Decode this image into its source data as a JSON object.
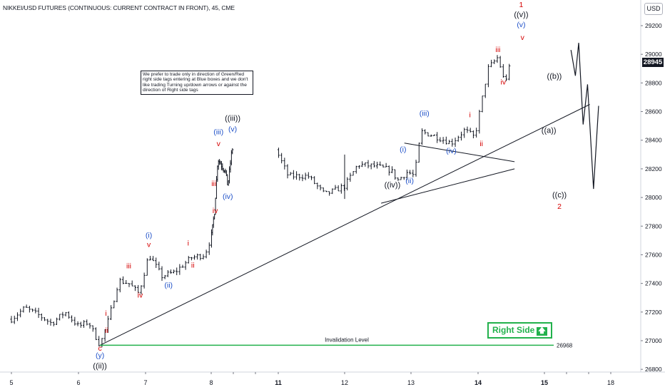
{
  "header": {
    "title": "NIKKEI/USD FUTURES (CONTINUOUS: CURRENT CONTRACT IN FRONT), 45, CME",
    "currency": "USD",
    "last_price": "28945"
  },
  "note": "We prefer to trade only in direction of Green/Red right side tags entering at Blue boxes and we don't like trading Turning up/down arrows or against the direction of Right side tags",
  "right_side": {
    "label": "Right Side",
    "arrow": "up-arrow-icon"
  },
  "chart_data": {
    "type": "candlestick",
    "title": "NIKKEI/USD FUTURES (CONTINUOUS: CURRENT CONTRACT IN FRONT), 45, CME",
    "x_ticks": [
      "5",
      "6",
      "7",
      "8",
      "9",
      "10",
      "11",
      "12",
      "13",
      "14",
      "15",
      "16",
      "17",
      "18"
    ],
    "x_tick_labels_shown": [
      "5",
      "6",
      "7",
      "8",
      "11",
      "12",
      "13",
      "14",
      "15",
      "18"
    ],
    "y_ticks": [
      26800,
      27000,
      27200,
      27400,
      27600,
      27800,
      28000,
      28200,
      28400,
      28600,
      28800,
      29000,
      29200
    ],
    "ylim": [
      26700,
      29380
    ],
    "price_path": [
      [
        5.0,
        27150
      ],
      [
        5.2,
        27230
      ],
      [
        5.4,
        27180
      ],
      [
        5.6,
        27120
      ],
      [
        5.8,
        27200
      ],
      [
        6.0,
        27100
      ],
      [
        6.15,
        27130
      ],
      [
        6.32,
        26968
      ],
      [
        6.45,
        27150
      ],
      [
        6.6,
        27420
      ],
      [
        6.75,
        27400
      ],
      [
        6.9,
        27330
      ],
      [
        7.05,
        27600
      ],
      [
        7.25,
        27450
      ],
      [
        7.45,
        27480
      ],
      [
        7.7,
        27580
      ],
      [
        7.9,
        27600
      ],
      [
        8.15,
        27900
      ],
      [
        8.3,
        28270
      ],
      [
        8.45,
        28230
      ],
      [
        8.65,
        28180
      ],
      [
        8.75,
        28080
      ],
      [
        8.95,
        28350
      ],
      [
        9.15,
        28150
      ],
      [
        9.45,
        28150
      ],
      [
        9.7,
        28020
      ],
      [
        10.0,
        28080
      ],
      [
        10.2,
        28230
      ],
      [
        10.45,
        28220
      ],
      [
        10.7,
        28190
      ],
      [
        10.8,
        28120
      ],
      [
        10.95,
        28180
      ],
      [
        11.05,
        28150
      ],
      [
        11.15,
        28460
      ],
      [
        11.35,
        28430
      ],
      [
        11.6,
        28380
      ],
      [
        11.8,
        28470
      ],
      [
        11.95,
        28420
      ],
      [
        12.15,
        28900
      ],
      [
        12.3,
        28980
      ],
      [
        12.4,
        28800
      ],
      [
        12.5,
        28945
      ]
    ],
    "series": [
      {
        "name": "",
        "kind": "trendline",
        "points": [
          [
            6.32,
            26968
          ],
          [
            15.05,
            28650
          ]
        ]
      },
      {
        "name": "",
        "kind": "triangle-upper",
        "points": [
          [
            10.9,
            28380
          ],
          [
            12.55,
            28250
          ]
        ]
      },
      {
        "name": "",
        "kind": "triangle-lower",
        "points": [
          [
            10.55,
            27960
          ],
          [
            12.55,
            28200
          ]
        ]
      },
      {
        "name": "",
        "kind": "projection",
        "points": [
          [
            14.2,
            29030
          ],
          [
            14.4,
            28850
          ],
          [
            14.55,
            29080
          ],
          [
            14.75,
            28510
          ],
          [
            14.95,
            28790
          ],
          [
            15.22,
            28060
          ],
          [
            15.45,
            28640
          ]
        ]
      }
    ],
    "levels": [
      {
        "label": "Invalidation Level",
        "value": 26968,
        "value_label": "26968",
        "x_from": 6.32,
        "x_to": 17.1
      }
    ],
    "wave_labels": [
      {
        "text": "c",
        "x": 6.32,
        "y": 26930,
        "color": "red"
      },
      {
        "text": "(y)",
        "x": 6.32,
        "y": 26880,
        "color": "blue"
      },
      {
        "text": "((ii))",
        "x": 6.32,
        "y": 26805,
        "color": "black"
      },
      {
        "text": "i",
        "x": 6.41,
        "y": 27175,
        "color": "red"
      },
      {
        "text": "ii",
        "x": 6.42,
        "y": 27055,
        "color": "red"
      },
      {
        "text": "iii",
        "x": 6.75,
        "y": 27505,
        "color": "red"
      },
      {
        "text": "iv",
        "x": 6.92,
        "y": 27300,
        "color": "red"
      },
      {
        "text": "(i)",
        "x": 7.05,
        "y": 27720,
        "color": "blue"
      },
      {
        "text": "v",
        "x": 7.05,
        "y": 27655,
        "color": "red"
      },
      {
        "text": "(ii)",
        "x": 7.35,
        "y": 27370,
        "color": "blue"
      },
      {
        "text": "i",
        "x": 7.65,
        "y": 27665,
        "color": "red"
      },
      {
        "text": "ii",
        "x": 7.72,
        "y": 27510,
        "color": "red"
      },
      {
        "text": "iii",
        "x": 8.12,
        "y": 28080,
        "color": "red"
      },
      {
        "text": "iv",
        "x": 8.18,
        "y": 27890,
        "color": "red"
      },
      {
        "text": "(iii)",
        "x": 8.33,
        "y": 28440,
        "color": "blue"
      },
      {
        "text": "v",
        "x": 8.33,
        "y": 28360,
        "color": "red"
      },
      {
        "text": "(iv)",
        "x": 8.75,
        "y": 27990,
        "color": "blue"
      },
      {
        "text": "((iii))",
        "x": 8.97,
        "y": 28535,
        "color": "black"
      },
      {
        "text": "(v)",
        "x": 8.97,
        "y": 28460,
        "color": "blue"
      },
      {
        "text": "((iv))",
        "x": 10.72,
        "y": 28070,
        "color": "black"
      },
      {
        "text": "(i)",
        "x": 10.88,
        "y": 28320,
        "color": "blue"
      },
      {
        "text": "(ii)",
        "x": 10.98,
        "y": 28100,
        "color": "blue"
      },
      {
        "text": "(iii)",
        "x": 11.2,
        "y": 28570,
        "color": "blue"
      },
      {
        "text": "(iv)",
        "x": 11.6,
        "y": 28310,
        "color": "blue"
      },
      {
        "text": "i",
        "x": 11.88,
        "y": 28560,
        "color": "red"
      },
      {
        "text": "ii",
        "x": 12.05,
        "y": 28360,
        "color": "red"
      },
      {
        "text": "iii",
        "x": 12.3,
        "y": 29015,
        "color": "red"
      },
      {
        "text": "iv",
        "x": 12.38,
        "y": 28790,
        "color": "red"
      },
      {
        "text": "1",
        "x": 12.65,
        "y": 29330,
        "color": "red"
      },
      {
        "text": "((v))",
        "x": 12.65,
        "y": 29260,
        "color": "black"
      },
      {
        "text": "(v)",
        "x": 12.65,
        "y": 29190,
        "color": "blue"
      },
      {
        "text": "v",
        "x": 12.67,
        "y": 29100,
        "color": "red"
      },
      {
        "text": "((a))",
        "x": 13.2,
        "y": 28450,
        "color": "black"
      },
      {
        "text": "((b))",
        "x": 13.45,
        "y": 28830,
        "color": "black"
      },
      {
        "text": "((c))",
        "x": 13.68,
        "y": 28000,
        "color": "black"
      },
      {
        "text": "2",
        "x": 13.68,
        "y": 27920,
        "color": "red"
      }
    ],
    "colors": {
      "red": "#d50000",
      "blue": "#1e50c8",
      "black": "#131722",
      "green": "#22b14c"
    },
    "grid": false
  }
}
